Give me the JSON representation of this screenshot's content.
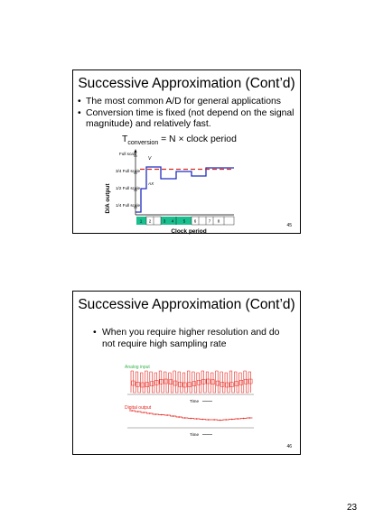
{
  "slides": [
    {
      "title": "Successive Approximation (Cont’d)",
      "bullets": [
        "The most common A/D for general applications",
        "Conversion time is fixed (not depend on the signal magnitude) and relatively fast."
      ],
      "formula": {
        "prefix": "T",
        "subscript": "conversion",
        "rest": " = N × clock period"
      },
      "figure": {
        "y_axis_label": "D/A output",
        "x_axis_label": "Clock period",
        "level_labels": [
          "Full scale",
          "3/4 Full scale",
          "1/2 Full scale",
          "1/4 Full scale"
        ],
        "signal_labels": [
          "V",
          "AX"
        ],
        "clock_ticks": [
          "1",
          "2",
          "3",
          "4",
          "5",
          "6",
          "7",
          "8"
        ],
        "colors": {
          "dac_output": "#1f2dc0",
          "analog_input": "#d22a1f",
          "clock_blocks": "#1bbf8f"
        }
      },
      "number": "45"
    },
    {
      "title": "Successive Approximation (Cont’d)",
      "bullets": [
        "When you require higher resolution and do not require high sampling rate"
      ],
      "figure": {
        "top_label": "Analog input",
        "top_axis": "Time",
        "bottom_label": "Digital output",
        "bottom_axis": "Time",
        "colors": {
          "analog_label": "#37b34a",
          "digital_label": "#e5231b",
          "signal": "#e5231b"
        }
      },
      "number": "46"
    }
  ],
  "page_number": "23"
}
